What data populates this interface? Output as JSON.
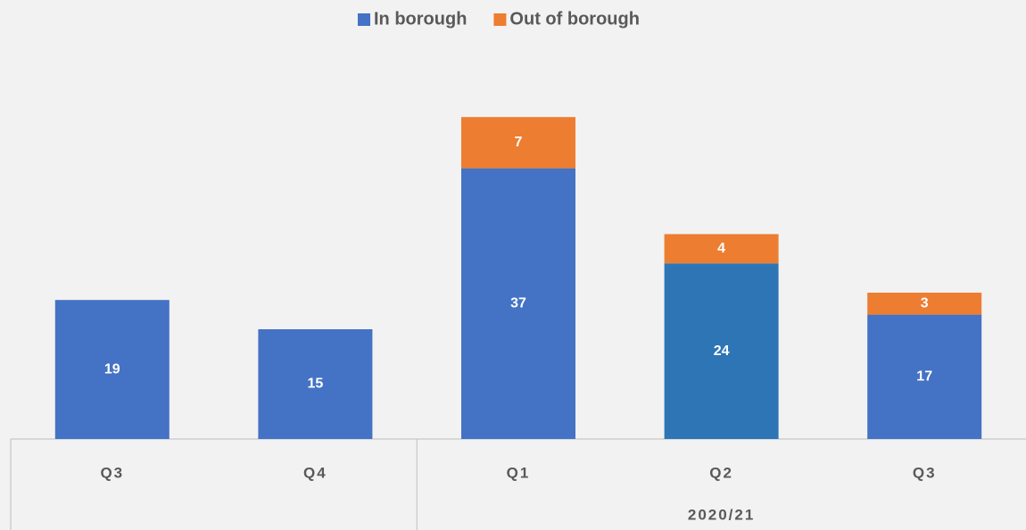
{
  "chart_data": {
    "type": "stacked_bar",
    "categories": [
      "Q3",
      "Q4",
      "Q1",
      "Q2",
      "Q3"
    ],
    "group_labels": [
      null,
      null,
      "2020/21",
      "2020/21",
      "2020/21"
    ],
    "series": [
      {
        "name": "In borough",
        "color": "#4472c4",
        "point_colors": [
          "#4472c4",
          "#4472c4",
          "#4472c4",
          "#2e75b6",
          "#4472c4"
        ],
        "values": [
          19,
          15,
          37,
          24,
          17
        ]
      },
      {
        "name": "Out of borough",
        "color": "#ed7d31",
        "values": [
          null,
          null,
          7,
          4,
          3
        ]
      }
    ],
    "ylim": [
      0,
      50
    ],
    "legend": "top"
  }
}
